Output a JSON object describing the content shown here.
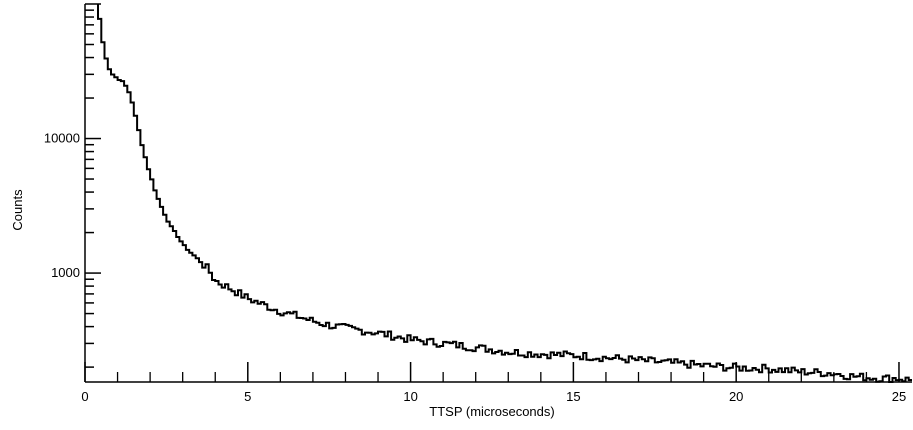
{
  "chart_data": {
    "type": "line",
    "style": "step-histogram",
    "xlabel": "TTSP (microseconds)",
    "ylabel": "Counts",
    "x_scale": "linear",
    "y_scale": "log",
    "xlim": [
      0,
      25.4
    ],
    "ylim": [
      155,
      100000
    ],
    "x_ticks": [
      {
        "value": 0,
        "label": "0"
      },
      {
        "value": 5,
        "label": "5"
      },
      {
        "value": 10,
        "label": "10"
      },
      {
        "value": 15,
        "label": "15"
      },
      {
        "value": 20,
        "label": "20"
      },
      {
        "value": 25,
        "label": "25"
      }
    ],
    "y_ticks": [
      {
        "value": 1000,
        "label": "1000"
      },
      {
        "value": 10000,
        "label": "10000"
      }
    ],
    "grid": false,
    "line_color": "#000000",
    "series": [
      {
        "bin_width": 0.1,
        "x_start": 0.4,
        "x": [
          0.4,
          0.5,
          0.6,
          0.7,
          0.8,
          0.9,
          1.0,
          1.2,
          1.4,
          1.6,
          1.8,
          2.0,
          2.2,
          2.4,
          2.6,
          2.8,
          3.0,
          3.2,
          3.4,
          3.6,
          3.8,
          4.0,
          4.5,
          5.0,
          5.5,
          6.0,
          6.5,
          7.0,
          7.5,
          8.0,
          9.0,
          10.0,
          11.0,
          12.0,
          13.0,
          14.0,
          15.0,
          16.0,
          17.0,
          18.0,
          19.0,
          20.0,
          21.0,
          22.0,
          23.0,
          23.5,
          24.0,
          24.5,
          25.0,
          25.4
        ],
        "y": [
          100000,
          60000,
          45000,
          35000,
          31000,
          29000,
          28000,
          26000,
          21000,
          13000,
          8000,
          5400,
          3800,
          2900,
          2300,
          1950,
          1650,
          1450,
          1320,
          1180,
          1060,
          880,
          760,
          650,
          580,
          520,
          480,
          440,
          410,
          390,
          360,
          320,
          300,
          280,
          260,
          250,
          245,
          235,
          225,
          215,
          205,
          198,
          195,
          185,
          180,
          172,
          168,
          165,
          165,
          160
        ]
      }
    ]
  }
}
